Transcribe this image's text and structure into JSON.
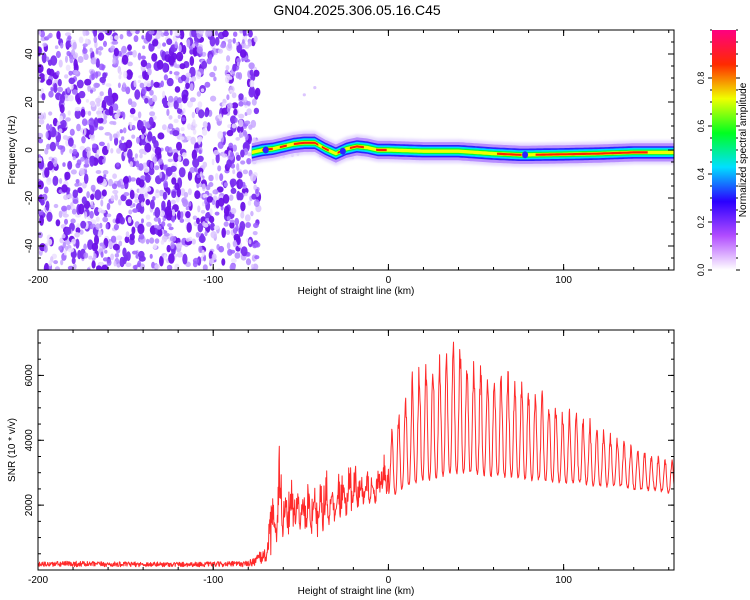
{
  "title": "GN04.2025.306.05.16.C45",
  "colors": {
    "snr_line": "#ff2a2a",
    "noise": "#7a18f0",
    "frame": "#000000"
  },
  "chart_data": [
    {
      "type": "heatmap",
      "title": "GN04.2025.306.05.16.C45",
      "xlabel": "Height of straight line (km)",
      "ylabel": "Frequency (Hz)",
      "xlim": [
        -200,
        163
      ],
      "ylim": [
        -50,
        50
      ],
      "xticks": [
        -200,
        -100,
        0,
        100
      ],
      "xtick_labels": [
        "-200",
        "-100",
        "0",
        "100"
      ],
      "yticks": [
        -40,
        -20,
        0,
        20,
        40
      ],
      "ytick_labels": [
        "-40",
        "-20",
        "0",
        "20",
        "40"
      ],
      "noise_region_x": [
        -200,
        -74
      ],
      "ridge": {
        "x": [
          -78,
          -72,
          -66,
          -60,
          -54,
          -48,
          -42,
          -36,
          -30,
          -24,
          -18,
          -12,
          -6,
          0,
          20,
          40,
          60,
          75,
          80,
          100,
          120,
          140,
          163
        ],
        "freq": [
          -1,
          0,
          0.5,
          1.5,
          2.5,
          3,
          3,
          0.5,
          -1.5,
          0.5,
          1.5,
          1,
          0,
          0,
          -0.5,
          -0.5,
          -1.5,
          -2,
          -2,
          -1.8,
          -1.5,
          -1,
          -1
        ]
      },
      "colorbar": {
        "label": "Normalized spectral amplitude",
        "range": [
          0,
          1
        ],
        "ticks": [
          0.0,
          0.2,
          0.4,
          0.6,
          0.8
        ],
        "tick_labels": [
          "0.0",
          "0.2",
          "0.4",
          "0.6",
          "0.8"
        ],
        "stops": [
          "#ffffff",
          "#b14cff",
          "#2a00ff",
          "#00e0ff",
          "#00ff20",
          "#f0ff00",
          "#ff2a00",
          "#ff0080"
        ]
      }
    },
    {
      "type": "line",
      "xlabel": "Height of straight line (km)",
      "ylabel": "SNR (10 * v/v)",
      "xlim": [
        -200,
        163
      ],
      "ylim": [
        0,
        7400
      ],
      "xticks": [
        -200,
        -100,
        0,
        100
      ],
      "xtick_labels": [
        "-200",
        "-100",
        "0",
        "100"
      ],
      "yticks": [
        2000,
        4000,
        6000
      ],
      "ytick_labels": [
        "2000",
        "4000",
        "6000"
      ],
      "series": [
        {
          "name": "SNR",
          "x": [
            -200,
            -180,
            -160,
            -140,
            -120,
            -100,
            -80,
            -70,
            -64,
            -62,
            -60,
            -55,
            -50,
            -45,
            -40,
            -35,
            -30,
            -25,
            -20,
            -15,
            -10,
            -5,
            0,
            5,
            10,
            15,
            20,
            25,
            30,
            35,
            40,
            45,
            50,
            60,
            70,
            80,
            90,
            100,
            110,
            120,
            130,
            140,
            150,
            160,
            163
          ],
          "min": [
            100,
            100,
            100,
            100,
            100,
            100,
            100,
            200,
            700,
            900,
            1000,
            1100,
            1200,
            1100,
            1000,
            1300,
            1500,
            1600,
            1700,
            1900,
            2000,
            2100,
            2300,
            2400,
            2600,
            2700,
            2800,
            2800,
            2900,
            3000,
            3000,
            3000,
            3000,
            2900,
            2900,
            2800,
            2800,
            2700,
            2700,
            2600,
            2600,
            2500,
            2500,
            2400,
            2400
          ],
          "max": [
            250,
            280,
            250,
            250,
            250,
            250,
            280,
            700,
            3200,
            4600,
            3000,
            3300,
            3000,
            3400,
            3900,
            3600,
            3200,
            3900,
            3700,
            3400,
            3300,
            3600,
            4200,
            4800,
            5600,
            6300,
            6600,
            6900,
            7000,
            7400,
            7300,
            6900,
            6600,
            6300,
            6200,
            5900,
            5500,
            5100,
            4800,
            4500,
            4200,
            3900,
            3600,
            3500,
            3500
          ]
        }
      ]
    }
  ]
}
